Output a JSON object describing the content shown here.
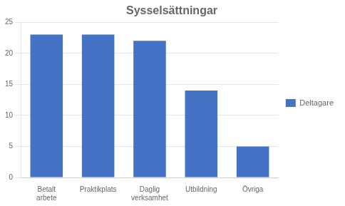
{
  "chart_data": {
    "type": "bar",
    "title": "Sysselsättningar",
    "categories": [
      "Betalt\narbete",
      "Praktikplats",
      "Daglig\nverksamhet",
      "Utbildning",
      "Övriga"
    ],
    "series": [
      {
        "name": "Deltagare",
        "color": "#4472C4",
        "values": [
          23,
          23,
          22,
          14,
          5
        ]
      }
    ],
    "ylim": [
      0,
      25
    ],
    "yticks": [
      0,
      5,
      10,
      15,
      20,
      25
    ],
    "grid": true,
    "legend": "right"
  }
}
